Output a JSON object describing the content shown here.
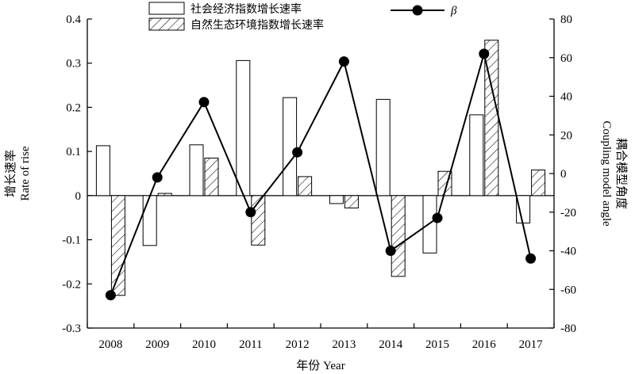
{
  "chart_data": {
    "type": "bar",
    "categories": [
      "2008",
      "2009",
      "2010",
      "2011",
      "2012",
      "2013",
      "2014",
      "2015",
      "2016",
      "2017"
    ],
    "series": [
      {
        "name": "社会经济指数增长速率",
        "kind": "bar",
        "axis": "left",
        "pattern": "empty",
        "values": [
          0.113,
          -0.113,
          0.115,
          0.306,
          0.222,
          -0.018,
          0.218,
          -0.13,
          0.183,
          -0.062
        ]
      },
      {
        "name": "自然生态环境指数增长速率",
        "kind": "bar",
        "axis": "left",
        "pattern": "hatched",
        "values": [
          -0.226,
          0.005,
          0.085,
          -0.112,
          0.043,
          -0.028,
          -0.183,
          0.055,
          0.352,
          0.058
        ]
      },
      {
        "name": "β",
        "kind": "line",
        "axis": "right",
        "values": [
          -63,
          -2,
          37,
          -20,
          11,
          58,
          -40,
          -23,
          62,
          -44
        ]
      }
    ],
    "y_left": {
      "label_cn": "增长速率",
      "label_en": "Rate of rise",
      "ylim": [
        -0.3,
        0.4
      ],
      "ticks": [
        "-0.3",
        "-0.2",
        "-0.1",
        "0",
        "0.1",
        "0.2",
        "0.3",
        "0.4"
      ]
    },
    "y_right": {
      "label_cn": "耦合模型角度",
      "label_en": "Coupling model angle",
      "ylim": [
        -80,
        80
      ],
      "ticks": [
        "-80",
        "-60",
        "-40",
        "-20",
        "0",
        "20",
        "40",
        "60",
        "80"
      ]
    },
    "xlabel": "年份 Year",
    "grid": false,
    "legend": "top"
  }
}
